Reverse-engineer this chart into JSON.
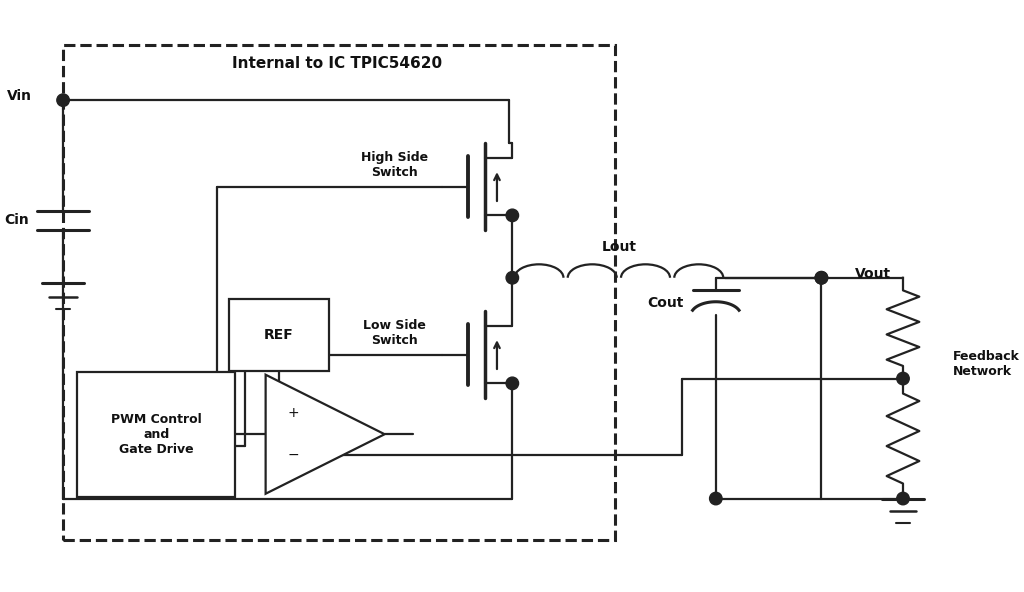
{
  "bg_color": "#ffffff",
  "line_color": "#222222",
  "text_color": "#111111",
  "ic_label": "Internal to IC TPIC54620",
  "vin_label": "Vin",
  "cin_label": "Cin",
  "lout_label": "Lout",
  "vout_label": "Vout",
  "cout_label": "Cout",
  "ref_label": "REF",
  "pwm_label": "PWM Control\nand\nGate Drive",
  "high_side_label": "High Side\nSwitch",
  "low_side_label": "Low Side\nSwitch",
  "feedback_label": "Feedback\nNetwork"
}
